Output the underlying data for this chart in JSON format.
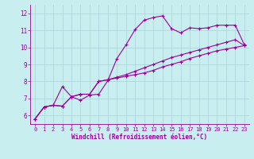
{
  "title": "",
  "xlabel": "Windchill (Refroidissement éolien,°C)",
  "background_color": "#c8eef0",
  "grid_color": "#aad4d8",
  "line_color": "#990099",
  "xlim": [
    -0.5,
    23.5
  ],
  "ylim": [
    5.5,
    12.5
  ],
  "xticks": [
    0,
    1,
    2,
    3,
    4,
    5,
    6,
    7,
    8,
    9,
    10,
    11,
    12,
    13,
    14,
    15,
    16,
    17,
    18,
    19,
    20,
    21,
    22,
    23
  ],
  "yticks": [
    6,
    7,
    8,
    9,
    10,
    11,
    12
  ],
  "series": [
    [
      5.8,
      6.5,
      6.6,
      7.7,
      7.1,
      6.9,
      7.2,
      7.25,
      8.05,
      9.35,
      10.15,
      11.05,
      11.6,
      11.75,
      11.85,
      11.1,
      10.85,
      11.15,
      11.1,
      11.15,
      11.3,
      11.3,
      11.3,
      10.15
    ],
    [
      5.8,
      6.5,
      6.6,
      6.55,
      7.1,
      7.25,
      7.25,
      8.0,
      8.1,
      8.2,
      8.3,
      8.4,
      8.5,
      8.65,
      8.85,
      9.0,
      9.15,
      9.35,
      9.5,
      9.65,
      9.8,
      9.9,
      10.0,
      10.1
    ],
    [
      5.8,
      6.5,
      6.6,
      6.55,
      7.1,
      7.25,
      7.25,
      8.0,
      8.1,
      8.25,
      8.4,
      8.6,
      8.8,
      9.0,
      9.2,
      9.4,
      9.55,
      9.7,
      9.85,
      10.0,
      10.15,
      10.3,
      10.45,
      10.1
    ]
  ],
  "tick_fontsize": 5,
  "xlabel_fontsize": 5.5,
  "linewidth": 0.8,
  "markersize": 3
}
